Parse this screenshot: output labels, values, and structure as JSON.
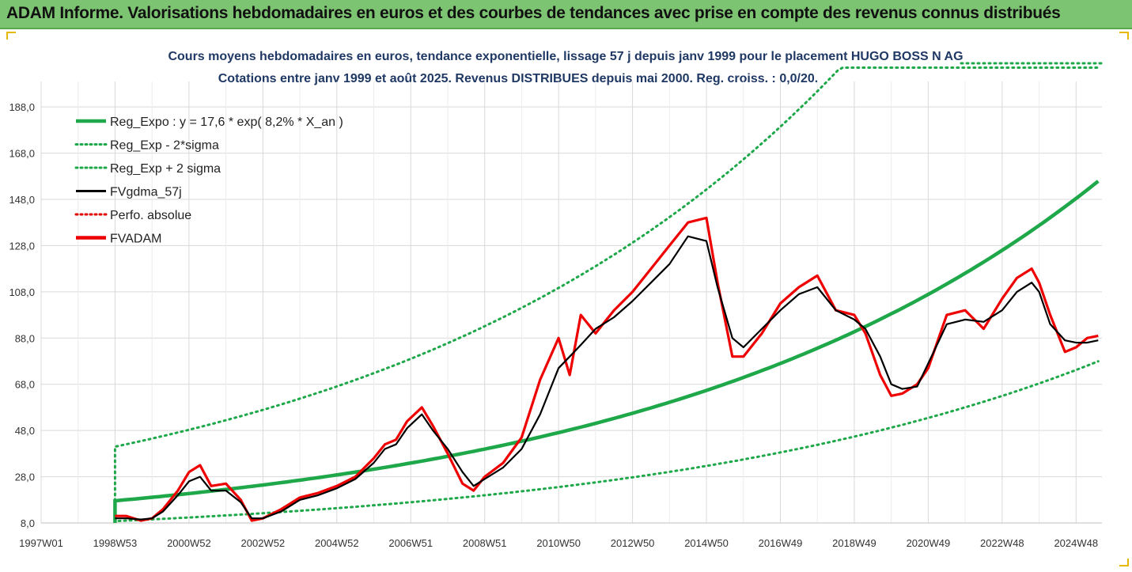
{
  "banner": {
    "title": "ADAM Informe. Valorisations hebdomadaires en euros et des courbes de tendances avec prise en compte des revenus connus distribués"
  },
  "chart_data": {
    "type": "line",
    "title": "Cours moyens hebdomadaires en euros, tendance exponentielle, lissage 57 j depuis janv 1999  pour le placement HUGO BOSS N AG",
    "subtitle": "Cotations entre janv 1999 et août 2025. Revenus DISTRIBUES depuis mai 2000. Reg. croiss. : 0,0/20.",
    "xlabel": "",
    "ylabel": "",
    "ylim": [
      8.0,
      199.0
    ],
    "y_ticks": [
      "8,0",
      "28,0",
      "48,0",
      "68,0",
      "88,0",
      "108,0",
      "128,0",
      "148,0",
      "168,0",
      "188,0"
    ],
    "x_ticks": [
      "1997W01",
      "1998W53",
      "2000W52",
      "2002W52",
      "2004W52",
      "2006W51",
      "2008W51",
      "2010W50",
      "2012W50",
      "2014W50",
      "2016W49",
      "2018W49",
      "2020W49",
      "2022W48",
      "2024W48"
    ],
    "x_range_years": [
      1997.0,
      2025.7
    ],
    "legend_position": "top-left",
    "grid": true,
    "regression": {
      "a": 17.6,
      "rate": 0.082,
      "start_year": 1999.0,
      "end_year": 2025.6
    },
    "legend": [
      {
        "label": "Reg_Expo : y = 17,6 * exp( 8,2% *  X_an )",
        "color": "#1ea84a",
        "style": "solid-thick"
      },
      {
        "label": "Reg_Exp - 2*sigma",
        "color": "#1ea84a",
        "style": "dotted"
      },
      {
        "label": "Reg_Exp + 2 sigma",
        "color": "#1ea84a",
        "style": "dotted"
      },
      {
        "label": "FVgdma_57j",
        "color": "#000000",
        "style": "solid"
      },
      {
        "label": "Perfo. absolue",
        "color": "#e00000",
        "style": "dotted"
      },
      {
        "label": "FVADAM",
        "color": "#ee0000",
        "style": "solid-thick"
      }
    ],
    "series": [
      {
        "name": "Reg_Expo : y = 17,6 * exp( 8,2% *  X_an )",
        "kind": "expo",
        "factor": 1.0,
        "color": "#1ea84a"
      },
      {
        "name": "Reg_Exp - 2*sigma",
        "kind": "expo",
        "factor": 0.5,
        "color": "#1ea84a"
      },
      {
        "name": "Reg_Exp + 2 sigma",
        "kind": "expo",
        "factor": 2.33,
        "color": "#1ea84a"
      },
      {
        "name": "FVgdma_57j",
        "color": "#000000",
        "x": [
          1999.0,
          1999.3,
          1999.7,
          2000.0,
          2000.3,
          2000.7,
          2001.0,
          2001.3,
          2001.6,
          2002.0,
          2002.4,
          2002.7,
          2003.0,
          2003.5,
          2004.0,
          2004.5,
          2005.0,
          2005.5,
          2006.0,
          2006.3,
          2006.6,
          2006.9,
          2007.3,
          2007.6,
          2008.0,
          2008.4,
          2008.7,
          2009.0,
          2009.5,
          2010.0,
          2010.5,
          2011.0,
          2011.3,
          2011.6,
          2012.0,
          2012.5,
          2013.0,
          2013.5,
          2014.0,
          2014.5,
          2015.0,
          2015.3,
          2015.7,
          2016.0,
          2016.5,
          2017.0,
          2017.5,
          2018.0,
          2018.5,
          2019.0,
          2019.3,
          2019.7,
          2020.0,
          2020.3,
          2020.7,
          2021.0,
          2021.5,
          2022.0,
          2022.5,
          2023.0,
          2023.4,
          2023.8,
          2024.0,
          2024.3,
          2024.7,
          2025.0,
          2025.3,
          2025.6
        ],
        "y": [
          10,
          10,
          9.5,
          10,
          13,
          20,
          26,
          28,
          22,
          22,
          17,
          10,
          10,
          13,
          18,
          20,
          23,
          27,
          34,
          40,
          42,
          49,
          55,
          48,
          40,
          30,
          24,
          27,
          32,
          40,
          55,
          75,
          80,
          85,
          92,
          97,
          104,
          112,
          120,
          132,
          130,
          110,
          88,
          84,
          92,
          100,
          107,
          110,
          100,
          96,
          92,
          80,
          68,
          66,
          67,
          77,
          94,
          96,
          95,
          100,
          108,
          112,
          108,
          94,
          87,
          86,
          86,
          87
        ]
      },
      {
        "name": "FVADAM",
        "color": "#ee0000",
        "x": [
          1999.0,
          1999.3,
          1999.7,
          2000.0,
          2000.3,
          2000.7,
          2001.0,
          2001.3,
          2001.6,
          2002.0,
          2002.4,
          2002.7,
          2003.0,
          2003.5,
          2004.0,
          2004.5,
          2005.0,
          2005.5,
          2006.0,
          2006.3,
          2006.6,
          2006.9,
          2007.3,
          2007.6,
          2008.0,
          2008.4,
          2008.7,
          2009.0,
          2009.5,
          2010.0,
          2010.5,
          2011.0,
          2011.3,
          2011.6,
          2012.0,
          2012.5,
          2013.0,
          2013.5,
          2014.0,
          2014.5,
          2015.0,
          2015.3,
          2015.7,
          2016.0,
          2016.5,
          2017.0,
          2017.5,
          2018.0,
          2018.5,
          2019.0,
          2019.3,
          2019.7,
          2020.0,
          2020.3,
          2020.7,
          2021.0,
          2021.5,
          2022.0,
          2022.5,
          2023.0,
          2023.4,
          2023.8,
          2024.0,
          2024.3,
          2024.7,
          2025.0,
          2025.3,
          2025.6
        ],
        "y": [
          11,
          11,
          9,
          10,
          14,
          22,
          30,
          33,
          24,
          25,
          18,
          9,
          10,
          14,
          19,
          21,
          24,
          28,
          36,
          42,
          44,
          52,
          58,
          50,
          38,
          25,
          22,
          28,
          34,
          45,
          70,
          88,
          72,
          98,
          90,
          100,
          108,
          118,
          128,
          138,
          140,
          112,
          80,
          80,
          90,
          103,
          110,
          115,
          100,
          98,
          90,
          72,
          63,
          64,
          68,
          75,
          98,
          100,
          92,
          105,
          114,
          118,
          112,
          98,
          82,
          84,
          88,
          89
        ]
      }
    ]
  }
}
